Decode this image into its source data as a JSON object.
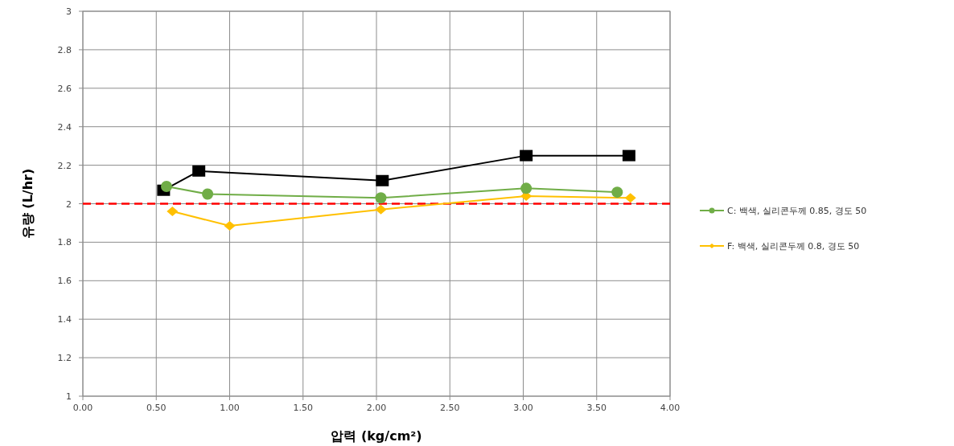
{
  "chart_data": {
    "type": "line",
    "xlabel": "압력 (kg/cm²)",
    "ylabel": "유량 (L/hr)",
    "xlim": [
      0,
      4
    ],
    "xticks": [
      {
        "value": 0,
        "label": "0.00"
      },
      {
        "value": 0.5,
        "label": "0.50"
      },
      {
        "value": 1,
        "label": "1.00"
      },
      {
        "value": 1.5,
        "label": "1.50"
      },
      {
        "value": 2,
        "label": "2.00"
      },
      {
        "value": 2.5,
        "label": "2.50"
      },
      {
        "value": 3,
        "label": "3.00"
      },
      {
        "value": 3.5,
        "label": "3.50"
      },
      {
        "value": 4,
        "label": "4.00"
      }
    ],
    "ylim": [
      1,
      3
    ],
    "yticks": [
      1,
      1.2,
      1.4,
      1.6,
      1.8,
      2,
      2.2,
      2.4,
      2.6,
      2.8,
      3
    ],
    "grid": true,
    "legend": "right",
    "ref_lines": [
      {
        "axis": "y",
        "value": 2,
        "color": "#ff0000",
        "line_style": "dashed"
      }
    ],
    "series": [
      {
        "name": "C: 백색, 실리콘두께 0.85, 경도 50",
        "color": "#70ad47",
        "marker": "circle",
        "x": [
          0.57,
          0.85,
          2.03,
          3.02,
          3.64
        ],
        "values": [
          2.09,
          2.05,
          2.03,
          2.08,
          2.06
        ]
      },
      {
        "color": "#000000",
        "marker": "square",
        "x": [
          0.55,
          0.79,
          2.04,
          3.02,
          3.72
        ],
        "values": [
          2.07,
          2.17,
          2.12,
          2.25,
          2.25
        ]
      },
      {
        "name": "F: 백색, 실리콘두께 0.8, 경도 50",
        "color": "#ffc000",
        "marker": "diamond",
        "x": [
          0.61,
          1.0,
          2.03,
          3.02,
          3.73
        ],
        "values": [
          1.96,
          1.885,
          1.97,
          2.04,
          2.03
        ]
      }
    ]
  }
}
